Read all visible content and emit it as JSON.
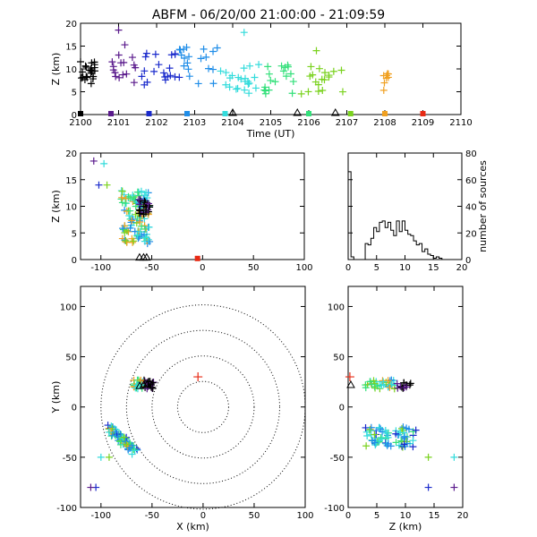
{
  "title": "ABFM - 06/20/00 21:00:00 - 21:09:59",
  "colors": {
    "palette": [
      "#000000",
      "#5a1a8c",
      "#1a2acc",
      "#1f8de8",
      "#33dcdc",
      "#33e07a",
      "#7ad21e",
      "#f0a020",
      "#e82a14"
    ],
    "station": "#000000"
  },
  "chart_data": [
    {
      "id": "time_height",
      "type": "scatter",
      "xlabel": "Time (UT)",
      "ylabel": "Z (km)",
      "xlim": [
        2100,
        2110
      ],
      "ylim": [
        0,
        20
      ],
      "xticks": [
        "2100",
        "2101",
        "2102",
        "2103",
        "2104",
        "2105",
        "2106",
        "2107",
        "2108",
        "2109",
        "2110"
      ],
      "yticks": [
        "0",
        "5",
        "10",
        "15",
        "20"
      ],
      "clusters": [
        {
          "color": "#000000",
          "t_range": [
            2100.0,
            2100.4
          ],
          "z_range": [
            6.5,
            12
          ],
          "n": 22
        },
        {
          "color": "#5a1a8c",
          "t_range": [
            2100.5,
            2101.5
          ],
          "z_range": [
            6.5,
            16
          ],
          "n": 16
        },
        {
          "color": "#1a2acc",
          "t_range": [
            2101.6,
            2102.6
          ],
          "z_range": [
            6.5,
            14
          ],
          "n": 20
        },
        {
          "color": "#1f8de8",
          "t_range": [
            2102.6,
            2103.6
          ],
          "z_range": [
            6.5,
            15
          ],
          "n": 20
        },
        {
          "color": "#33dcdc",
          "t_range": [
            2103.6,
            2104.7
          ],
          "z_range": [
            4.5,
            11
          ],
          "n": 22
        },
        {
          "color": "#33e07a",
          "t_range": [
            2104.8,
            2105.6
          ],
          "z_range": [
            4.5,
            11
          ],
          "n": 18
        },
        {
          "color": "#7ad21e",
          "t_range": [
            2105.8,
            2106.9
          ],
          "z_range": [
            4.5,
            11
          ],
          "n": 18
        },
        {
          "color": "#f0a020",
          "t_range": [
            2107.9,
            2108.1
          ],
          "z_range": [
            5,
            9
          ],
          "n": 8
        }
      ],
      "outliers": [
        {
          "t": 2101.0,
          "z": 18.5,
          "color": "#5a1a8c"
        },
        {
          "t": 2104.3,
          "z": 18.0,
          "color": "#33dcdc"
        },
        {
          "t": 2106.2,
          "z": 14.0,
          "color": "#7ad21e"
        }
      ],
      "ground_points": [
        {
          "t": 2100.0,
          "color": "#000000"
        },
        {
          "t": 2100.8,
          "color": "#5a1a8c"
        },
        {
          "t": 2101.8,
          "color": "#1a2acc"
        },
        {
          "t": 2102.8,
          "color": "#1f8de8"
        },
        {
          "t": 2103.8,
          "color": "#33dcdc"
        },
        {
          "t": 2106.0,
          "color": "#33e07a"
        },
        {
          "t": 2107.1,
          "color": "#7ad21e"
        },
        {
          "t": 2108.0,
          "color": "#f0a020"
        },
        {
          "t": 2109.0,
          "color": "#e82a14"
        }
      ],
      "station_markers_t": [
        2104.0,
        2105.7,
        2106.7
      ]
    },
    {
      "id": "x_z",
      "type": "scatter",
      "ylabel": "Z (km)",
      "xlim": [
        -120,
        100
      ],
      "ylim": [
        0,
        20
      ],
      "xticks": [
        "-100",
        "-50",
        "0",
        "50",
        "100"
      ],
      "yticks": [
        "0",
        "5",
        "10",
        "15",
        "20"
      ],
      "cluster": {
        "x_range": [
          -80,
          -52
        ],
        "z_range": [
          3,
          13
        ],
        "n": 120
      },
      "dark_cluster": {
        "x_range": [
          -63,
          -52
        ],
        "z_range": [
          8.5,
          11.5
        ],
        "n": 22
      },
      "outliers": [
        {
          "x": -107,
          "z": 18.5,
          "color": "#5a1a8c"
        },
        {
          "x": -97,
          "z": 18.0,
          "color": "#33dcdc"
        },
        {
          "x": -102,
          "z": 14.0,
          "color": "#1a2acc"
        },
        {
          "x": -94,
          "z": 14.0,
          "color": "#7ad21e"
        }
      ],
      "ground_points": [
        {
          "x": -5,
          "z": 0,
          "color": "#e82a14"
        }
      ],
      "station_markers_x": [
        -62,
        -58,
        -55
      ]
    },
    {
      "id": "height_histogram",
      "type": "bar",
      "xlim": [
        0,
        20
      ],
      "ylim": [
        0,
        80
      ],
      "ylabel": "number of sources",
      "xticks": [
        "0",
        "5",
        "10",
        "15",
        "20"
      ],
      "yticks": [
        "0",
        "20",
        "40",
        "60",
        "80"
      ],
      "bin_width": 0.5,
      "bin_edges_start": 0,
      "values": [
        66,
        2,
        0,
        0,
        0,
        0,
        12,
        11,
        16,
        24,
        21,
        28,
        29,
        24,
        28,
        22,
        18,
        29,
        21,
        29,
        22,
        19,
        18,
        14,
        11,
        12,
        6,
        8,
        4,
        3,
        1,
        2,
        1,
        0,
        0,
        0,
        0,
        0,
        0,
        0
      ]
    },
    {
      "id": "plan_view",
      "type": "scatter",
      "xlabel": "X (km)",
      "ylabel": "Y (km)",
      "xlim": [
        -120,
        100
      ],
      "ylim": [
        -100,
        120
      ],
      "xticks": [
        "-100",
        "-50",
        "0",
        "50",
        "100"
      ],
      "yticks": [
        "-100",
        "-50",
        "0",
        "50",
        "100"
      ],
      "range_rings_km": [
        25,
        50,
        75,
        100
      ],
      "ring_center": [
        0,
        0
      ],
      "cluster_north": {
        "x_range": [
          -68,
          -48
        ],
        "y_range": [
          18,
          27
        ],
        "n": 45
      },
      "cluster_south": {
        "x_range": [
          -92,
          -66
        ],
        "y_range": [
          -46,
          -20
        ],
        "n": 70
      },
      "outliers": [
        {
          "x": -100,
          "y": -50,
          "color": "#33dcdc"
        },
        {
          "x": -92,
          "y": -50,
          "color": "#7ad21e"
        },
        {
          "x": -105,
          "y": -80,
          "color": "#1a2acc"
        },
        {
          "x": -110,
          "y": -80,
          "color": "#5a1a8c"
        }
      ],
      "ground_points": [
        {
          "x": -5,
          "y": 30,
          "color": "#e82a14"
        }
      ],
      "station_markers": [
        [
          -62,
          21
        ],
        [
          -58,
          22
        ],
        [
          -55,
          22
        ]
      ]
    },
    {
      "id": "z_y",
      "type": "scatter",
      "xlabel": "Z (km)",
      "xlim": [
        0,
        20
      ],
      "ylim": [
        -100,
        120
      ],
      "xticks": [
        "0",
        "5",
        "10",
        "15",
        "20"
      ],
      "yticks": [
        "-100",
        "-50",
        "0",
        "50",
        "100"
      ],
      "cluster_north": {
        "z_range": [
          3,
          11
        ],
        "y_range": [
          18,
          27
        ],
        "n": 45
      },
      "cluster_south": {
        "z_range": [
          3,
          12
        ],
        "y_range": [
          -40,
          -20
        ],
        "n": 70
      },
      "outliers": [
        {
          "z": 14.0,
          "y": -50,
          "color": "#7ad21e"
        },
        {
          "z": 18.5,
          "y": -50,
          "color": "#33dcdc"
        },
        {
          "z": 14.0,
          "y": -80,
          "color": "#1a2acc"
        },
        {
          "z": 18.5,
          "y": -80,
          "color": "#5a1a8c"
        }
      ],
      "ground_points": [
        {
          "z": 0.3,
          "y": 30,
          "color": "#e82a14"
        }
      ],
      "station_markers": [
        [
          0,
          22
        ]
      ]
    }
  ]
}
